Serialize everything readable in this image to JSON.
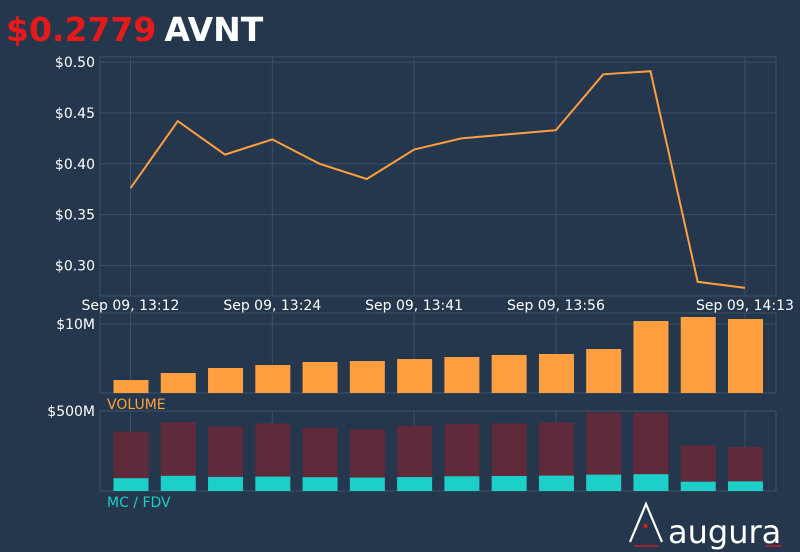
{
  "header": {
    "price": "$0.2779",
    "ticker": "AVNT"
  },
  "colors": {
    "background": "#24374c",
    "grid": "#3b526b",
    "price_line": "#ff9f40",
    "volume_bar": "#ff9f40",
    "mc_bar": "#5f2a3a",
    "fdv_bar": "#1ccfc9",
    "price_text": "#e8191a"
  },
  "chart_data": [
    {
      "type": "line",
      "x": [
        "13:12",
        "13:18",
        "13:24",
        "13:27",
        "13:33",
        "13:36",
        "13:41",
        "13:47",
        "13:53",
        "13:56",
        "14:02",
        "14:07",
        "14:10",
        "14:13"
      ],
      "values": [
        0.376,
        0.442,
        0.409,
        0.424,
        0.4,
        0.385,
        0.414,
        0.425,
        0.429,
        0.433,
        0.488,
        0.491,
        0.284,
        0.278
      ],
      "xticks": [
        "Sep 09, 13:12",
        "Sep 09, 13:24",
        "Sep 09, 13:41",
        "Sep 09, 13:56",
        "Sep 09, 14:13"
      ],
      "yticks": [
        "$0.30",
        "$0.35",
        "$0.40",
        "$0.45",
        "$0.50"
      ],
      "ylim": [
        0.27,
        0.505
      ]
    },
    {
      "type": "bar",
      "label": "VOLUME",
      "values": [
        1.3,
        2.0,
        2.5,
        2.8,
        3.1,
        3.2,
        3.4,
        3.6,
        3.8,
        3.9,
        4.4,
        7.2,
        7.6,
        7.4
      ],
      "yticks": [
        "$10M"
      ],
      "ylim": [
        0,
        8
      ]
    },
    {
      "type": "bar",
      "label": "MC / FDV",
      "series": [
        {
          "values": [
            372,
            430,
            402,
            423,
            395,
            385,
            408,
            420,
            423,
            428,
            490,
            490,
            285,
            275
          ]
        },
        {
          "values": [
            80,
            95,
            88,
            90,
            86,
            84,
            87,
            92,
            94,
            96,
            102,
            105,
            58,
            60
          ]
        }
      ],
      "yticks": [
        "$500M"
      ],
      "ylim": [
        0,
        500
      ]
    }
  ],
  "logo": {
    "text": "augura"
  }
}
